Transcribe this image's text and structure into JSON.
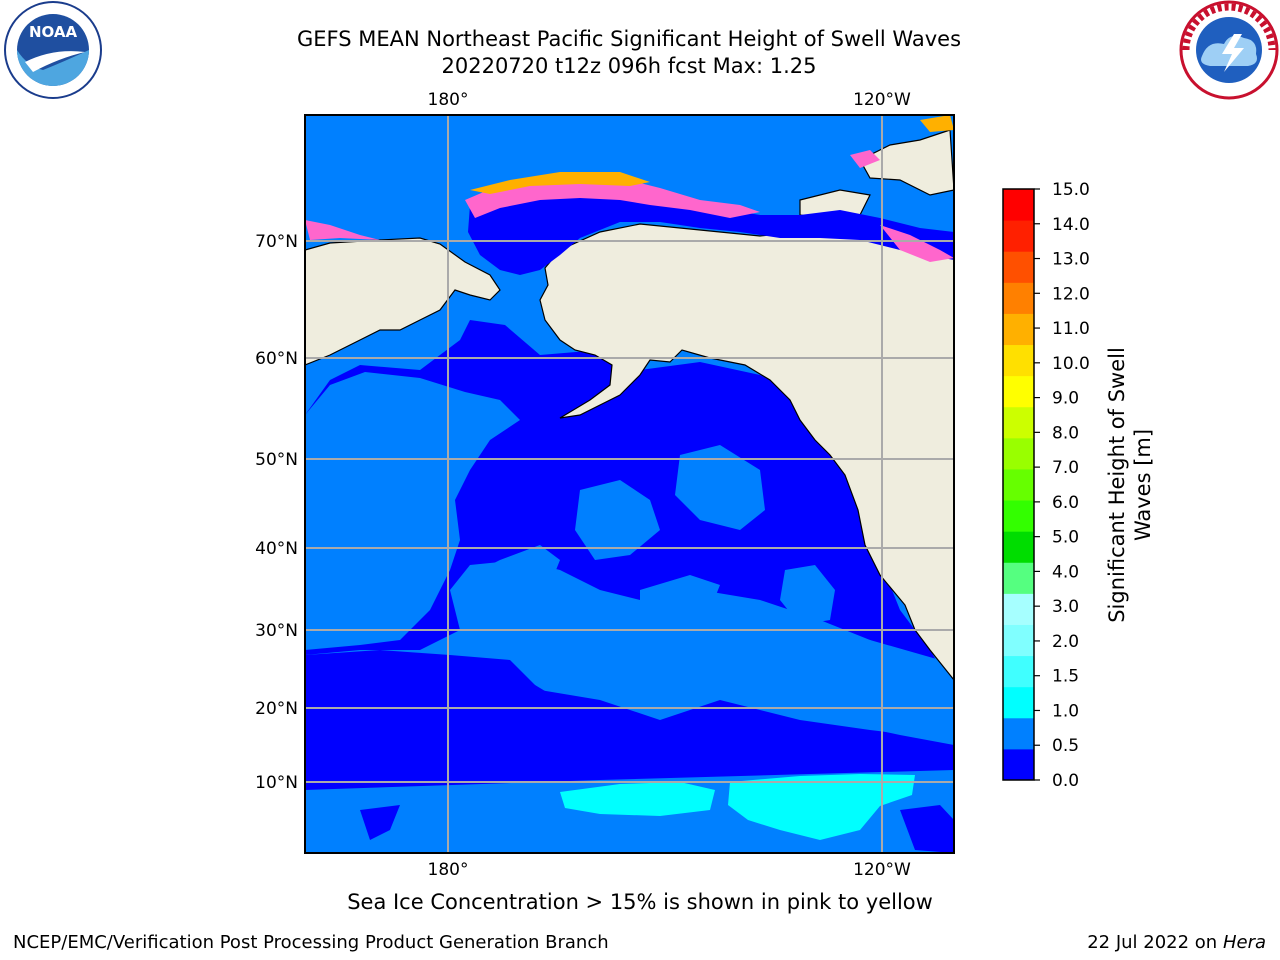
{
  "title_line1": "GEFS MEAN Northeast Pacific Significant Height of Swell Waves",
  "title_line2": "20220720 t12z 096h fcst   Max: 1.25",
  "logos": {
    "left": "NOAA",
    "right": "NATIONAL WEATHER SERVICE"
  },
  "map": {
    "top_lon_labels": [
      "180°",
      "120°W"
    ],
    "bottom_lon_labels": [
      "180°",
      "120°W"
    ],
    "lat_labels": [
      "70°N",
      "60°N",
      "50°N",
      "40°N",
      "30°N",
      "20°N",
      "10°N"
    ]
  },
  "colorbar": {
    "label": "Significant Height of Swell Waves [m]",
    "label_line1": "Significant Height of Swell",
    "label_line2": "Waves [m]",
    "ticks": [
      "15.0",
      "14.0",
      "13.0",
      "12.0",
      "11.0",
      "10.0",
      "9.0",
      "8.0",
      "7.0",
      "6.0",
      "5.0",
      "4.0",
      "3.0",
      "2.0",
      "1.5",
      "1.0",
      "0.5",
      "0.0"
    ],
    "colors": [
      "#0000ff",
      "#0080ff",
      "#00ffff",
      "#40ffff",
      "#80ffff",
      "#a6ffff",
      "#55ff80",
      "#00dd00",
      "#33ff00",
      "#66ff00",
      "#99ff00",
      "#ccff00",
      "#ffff00",
      "#ffe000",
      "#ffb000",
      "#ff8000",
      "#ff5000",
      "#ff2000",
      "#ff0000"
    ]
  },
  "footer": {
    "ice_note": "Sea Ice Concentration > 15% is shown in pink to yellow",
    "credit": "NCEP/EMC/Verification Post Processing Product Generation Branch",
    "date": "22 Jul 2022 on ",
    "host": "Hera"
  }
}
